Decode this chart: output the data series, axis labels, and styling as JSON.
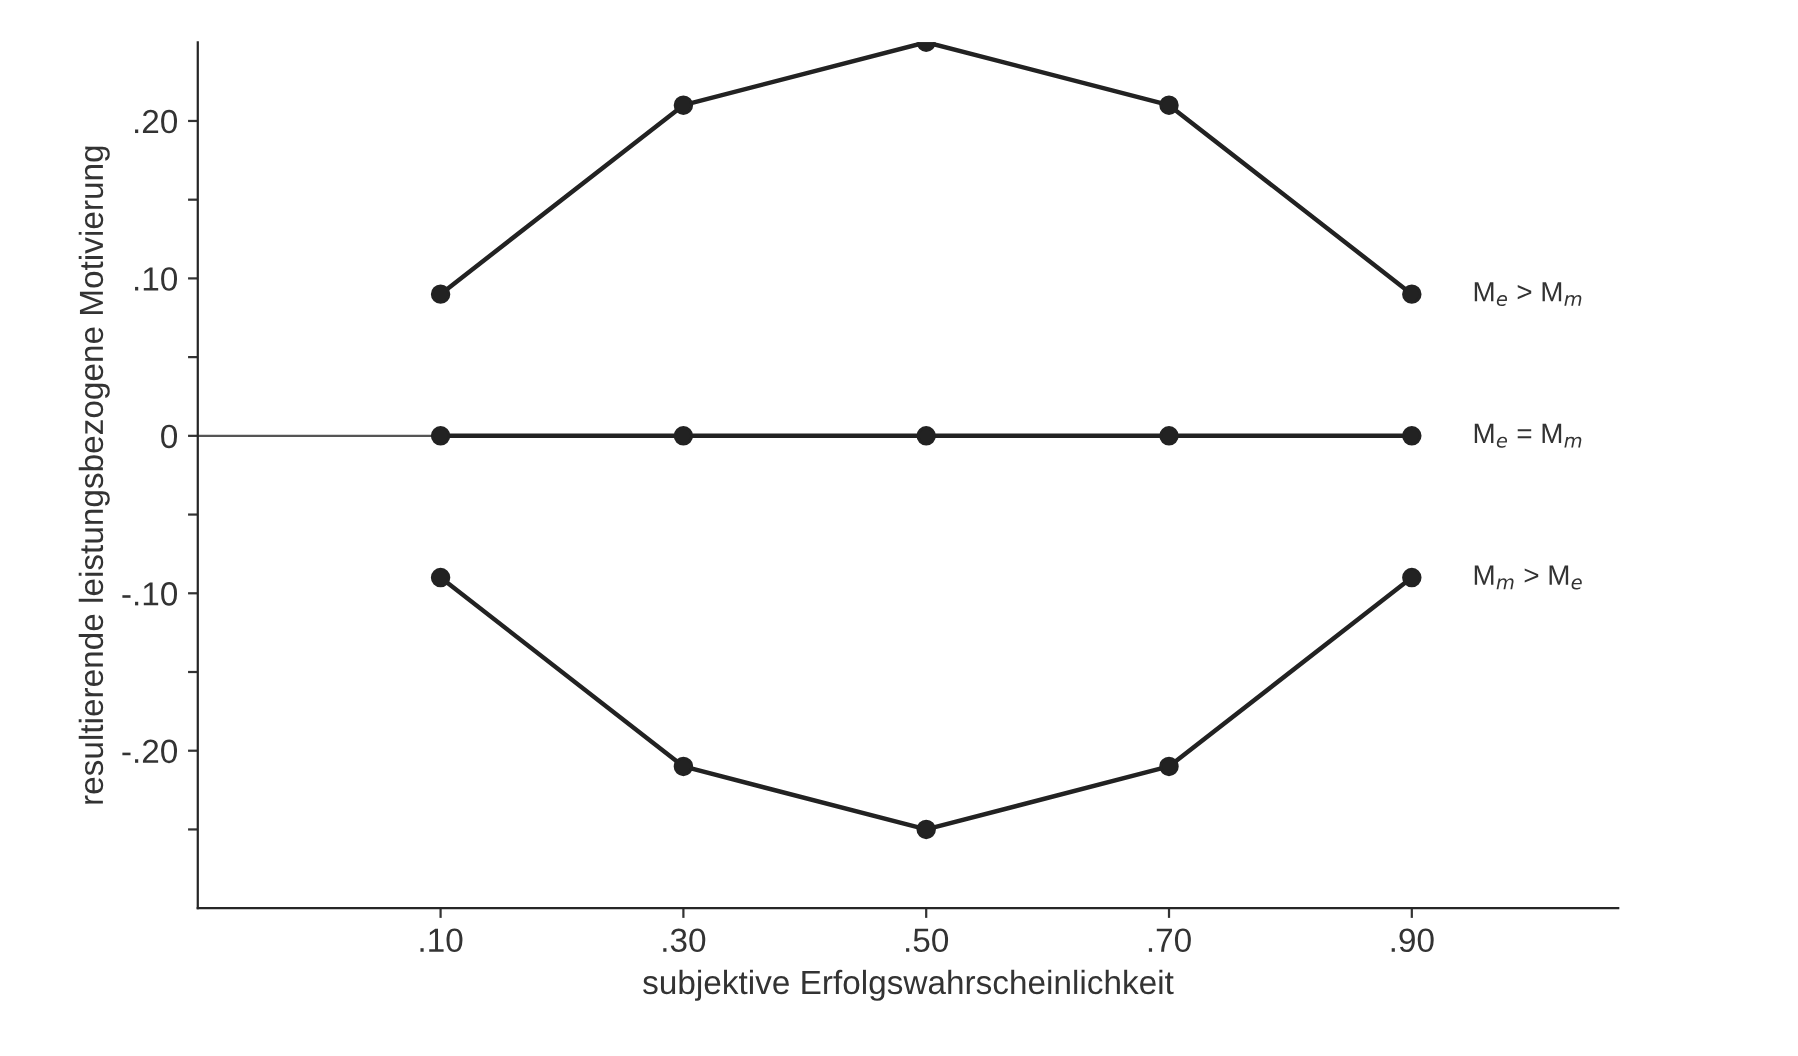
{
  "chart_data": {
    "type": "line",
    "xlabel": "subjektive Erfolgswahrscheinlichkeit",
    "ylabel": "resultierende leistungsbezogene Motivierung",
    "x": [
      0.1,
      0.3,
      0.5,
      0.7,
      0.9
    ],
    "series": [
      {
        "name": "M$_{e}$ > M$_{m}$",
        "color": "#222222",
        "values": [
          0.09,
          0.21,
          0.25,
          0.21,
          0.09
        ]
      },
      {
        "name": "M$_{e}$ = M$_{m}$",
        "color": "#222222",
        "values": [
          0,
          0,
          0,
          0,
          0
        ]
      },
      {
        "name": "M$_{m}$ > M$_{e}$",
        "color": "#222222",
        "values": [
          -0.09,
          -0.21,
          -0.25,
          -0.21,
          -0.09
        ]
      }
    ],
    "xlim": [
      -0.1,
      1.07
    ],
    "ylim": [
      -0.3,
      0.25
    ],
    "xticks": [
      {
        "value": 0.1,
        "label": ".10"
      },
      {
        "value": 0.3,
        "label": ".30"
      },
      {
        "value": 0.5,
        "label": ".50"
      },
      {
        "value": 0.7,
        "label": ".70"
      },
      {
        "value": 0.9,
        "label": ".90"
      }
    ],
    "yticks": [
      {
        "value": -0.25,
        "label": null
      },
      {
        "value": -0.2,
        "label": "-.20"
      },
      {
        "value": -0.15,
        "label": null
      },
      {
        "value": -0.1,
        "label": "-.10"
      },
      {
        "value": -0.05,
        "label": null
      },
      {
        "value": 0,
        "label": "0"
      },
      {
        "value": 0.05,
        "label": null
      },
      {
        "value": 0.1,
        "label": ".10"
      },
      {
        "value": 0.15,
        "label": null
      },
      {
        "value": 0.2,
        "label": ".20"
      }
    ],
    "ref_lines": [
      {
        "axis": "y",
        "value": 0,
        "color": "#555555"
      }
    ],
    "marker": "circle",
    "line_style": "solid",
    "grid": false,
    "legend": false
  }
}
